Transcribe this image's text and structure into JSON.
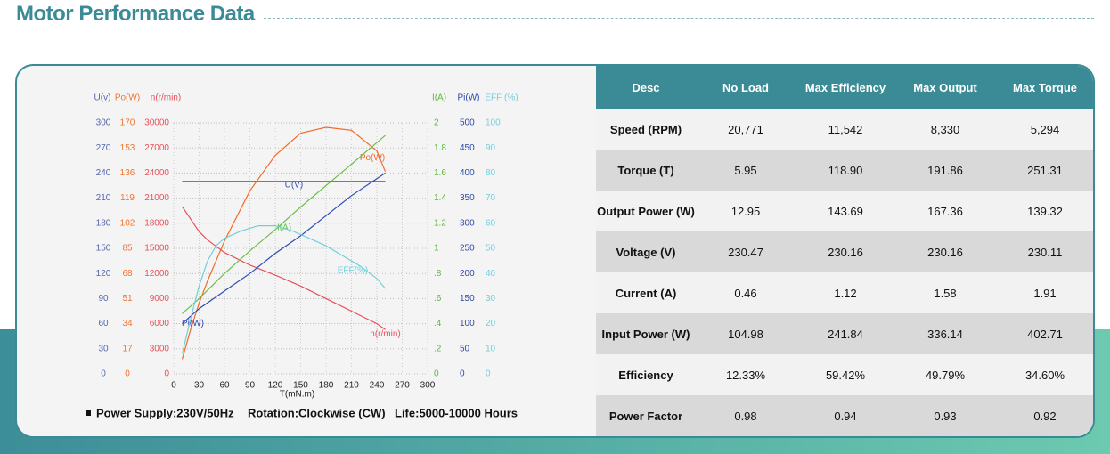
{
  "header": {
    "title": "Motor Performance Data"
  },
  "chart_data": {
    "type": "line",
    "xlabel": "T(mN.m)",
    "xlim": [
      0,
      300
    ],
    "xticks": [
      0,
      30,
      60,
      90,
      120,
      150,
      180,
      210,
      240,
      270,
      300
    ],
    "grid": true,
    "axes": [
      {
        "title": "U(v)",
        "color": "#5566b0",
        "ylim": [
          0,
          300
        ],
        "yticks": [
          0,
          30,
          60,
          90,
          120,
          150,
          180,
          210,
          240,
          270,
          300
        ]
      },
      {
        "title": "Po(W)",
        "color": "#f0742f",
        "ylim": [
          0,
          170
        ],
        "yticks": [
          0,
          17,
          34,
          51,
          68,
          85,
          102,
          119,
          136,
          153,
          170
        ]
      },
      {
        "title": "n(r/min)",
        "color": "#e8505b",
        "ylim": [
          0,
          30000
        ],
        "yticks": [
          0,
          3000,
          6000,
          9000,
          12000,
          15000,
          18000,
          21000,
          24000,
          27000,
          30000
        ]
      },
      {
        "title": "I(A)",
        "color": "#5cb83c",
        "ylim": [
          0,
          2
        ],
        "yticks": [
          0,
          {
            "value": 0.2,
            "label": ".2"
          },
          {
            "value": 0.4,
            "label": ".4"
          },
          {
            "value": 0.6,
            "label": ".6"
          },
          {
            "value": 0.8,
            "label": ".8"
          },
          1,
          1.2,
          1.4,
          1.6,
          1.8,
          2
        ]
      },
      {
        "title": "Pi(W)",
        "color": "#3048a8",
        "ylim": [
          0,
          500
        ],
        "yticks": [
          0,
          50,
          100,
          150,
          200,
          250,
          300,
          350,
          400,
          450,
          500
        ]
      },
      {
        "title": "EFF (%)",
        "color": "#6fcfdc",
        "ylim": [
          0,
          100
        ],
        "yticks": [
          0,
          10,
          20,
          30,
          40,
          50,
          60,
          70,
          80,
          90,
          100
        ]
      }
    ],
    "series": [
      {
        "name": "U(V)",
        "color": "#3a4fa8",
        "axis": 0,
        "x": [
          10,
          250
        ],
        "values": [
          230,
          230
        ]
      },
      {
        "name": "Po(W)",
        "color": "#f26b2a",
        "axis": 1,
        "x": [
          10,
          20,
          30,
          40,
          60,
          90,
          120,
          150,
          180,
          210,
          240,
          250
        ],
        "values": [
          10,
          30,
          48,
          63,
          90,
          124,
          148,
          163,
          167,
          165,
          151,
          137
        ]
      },
      {
        "name": "n(r/min)",
        "color": "#e8505b",
        "axis": 2,
        "x": [
          10,
          20,
          30,
          40,
          60,
          90,
          120,
          150,
          180,
          210,
          240,
          250
        ],
        "values": [
          20000,
          18500,
          17000,
          16000,
          14500,
          13000,
          11800,
          10500,
          9000,
          7500,
          6000,
          5300
        ]
      },
      {
        "name": "I(A)",
        "color": "#6cc04a",
        "axis": 3,
        "x": [
          10,
          30,
          60,
          90,
          120,
          150,
          180,
          210,
          250
        ],
        "values": [
          0.48,
          0.6,
          0.8,
          0.98,
          1.15,
          1.33,
          1.5,
          1.67,
          1.9
        ]
      },
      {
        "name": "Pi(W)",
        "color": "#2f4bb0",
        "axis": 4,
        "x": [
          10,
          30,
          60,
          90,
          120,
          150,
          180,
          210,
          250
        ],
        "values": [
          100,
          130,
          165,
          200,
          240,
          275,
          315,
          355,
          400
        ]
      },
      {
        "name": "EFF(%)",
        "color": "#6dd0dc",
        "axis": 5,
        "x": [
          10,
          20,
          30,
          40,
          50,
          60,
          80,
          100,
          120,
          140,
          160,
          180,
          200,
          220,
          240,
          250
        ],
        "values": [
          8,
          22,
          35,
          45,
          51,
          54,
          57,
          59,
          59,
          57,
          54,
          51,
          47,
          43,
          38,
          34
        ]
      }
    ]
  },
  "notes": [
    "Power Supply:230V/50Hz",
    "Rotation:Clockwise (CW)",
    "Life:5000-10000 Hours"
  ],
  "table": {
    "columns": [
      "Desc",
      "No Load",
      "Max Efficiency",
      "Max Output",
      "Max Torque"
    ],
    "rows": [
      [
        "Speed (RPM)",
        "20,771",
        "11,542",
        "8,330",
        "5,294"
      ],
      [
        "Torque (T)",
        "5.95",
        "118.90",
        "191.86",
        "251.31"
      ],
      [
        "Output Power (W)",
        "12.95",
        "143.69",
        "167.36",
        "139.32"
      ],
      [
        "Voltage (V)",
        "230.47",
        "230.16",
        "230.16",
        "230.11"
      ],
      [
        "Current (A)",
        "0.46",
        "1.12",
        "1.58",
        "1.91"
      ],
      [
        "Input Power (W)",
        "104.98",
        "241.84",
        "336.14",
        "402.71"
      ],
      [
        "Efficiency",
        "12.33%",
        "59.42%",
        "49.79%",
        "34.60%"
      ],
      [
        "Power Factor",
        "0.98",
        "0.94",
        "0.93",
        "0.92"
      ]
    ]
  }
}
